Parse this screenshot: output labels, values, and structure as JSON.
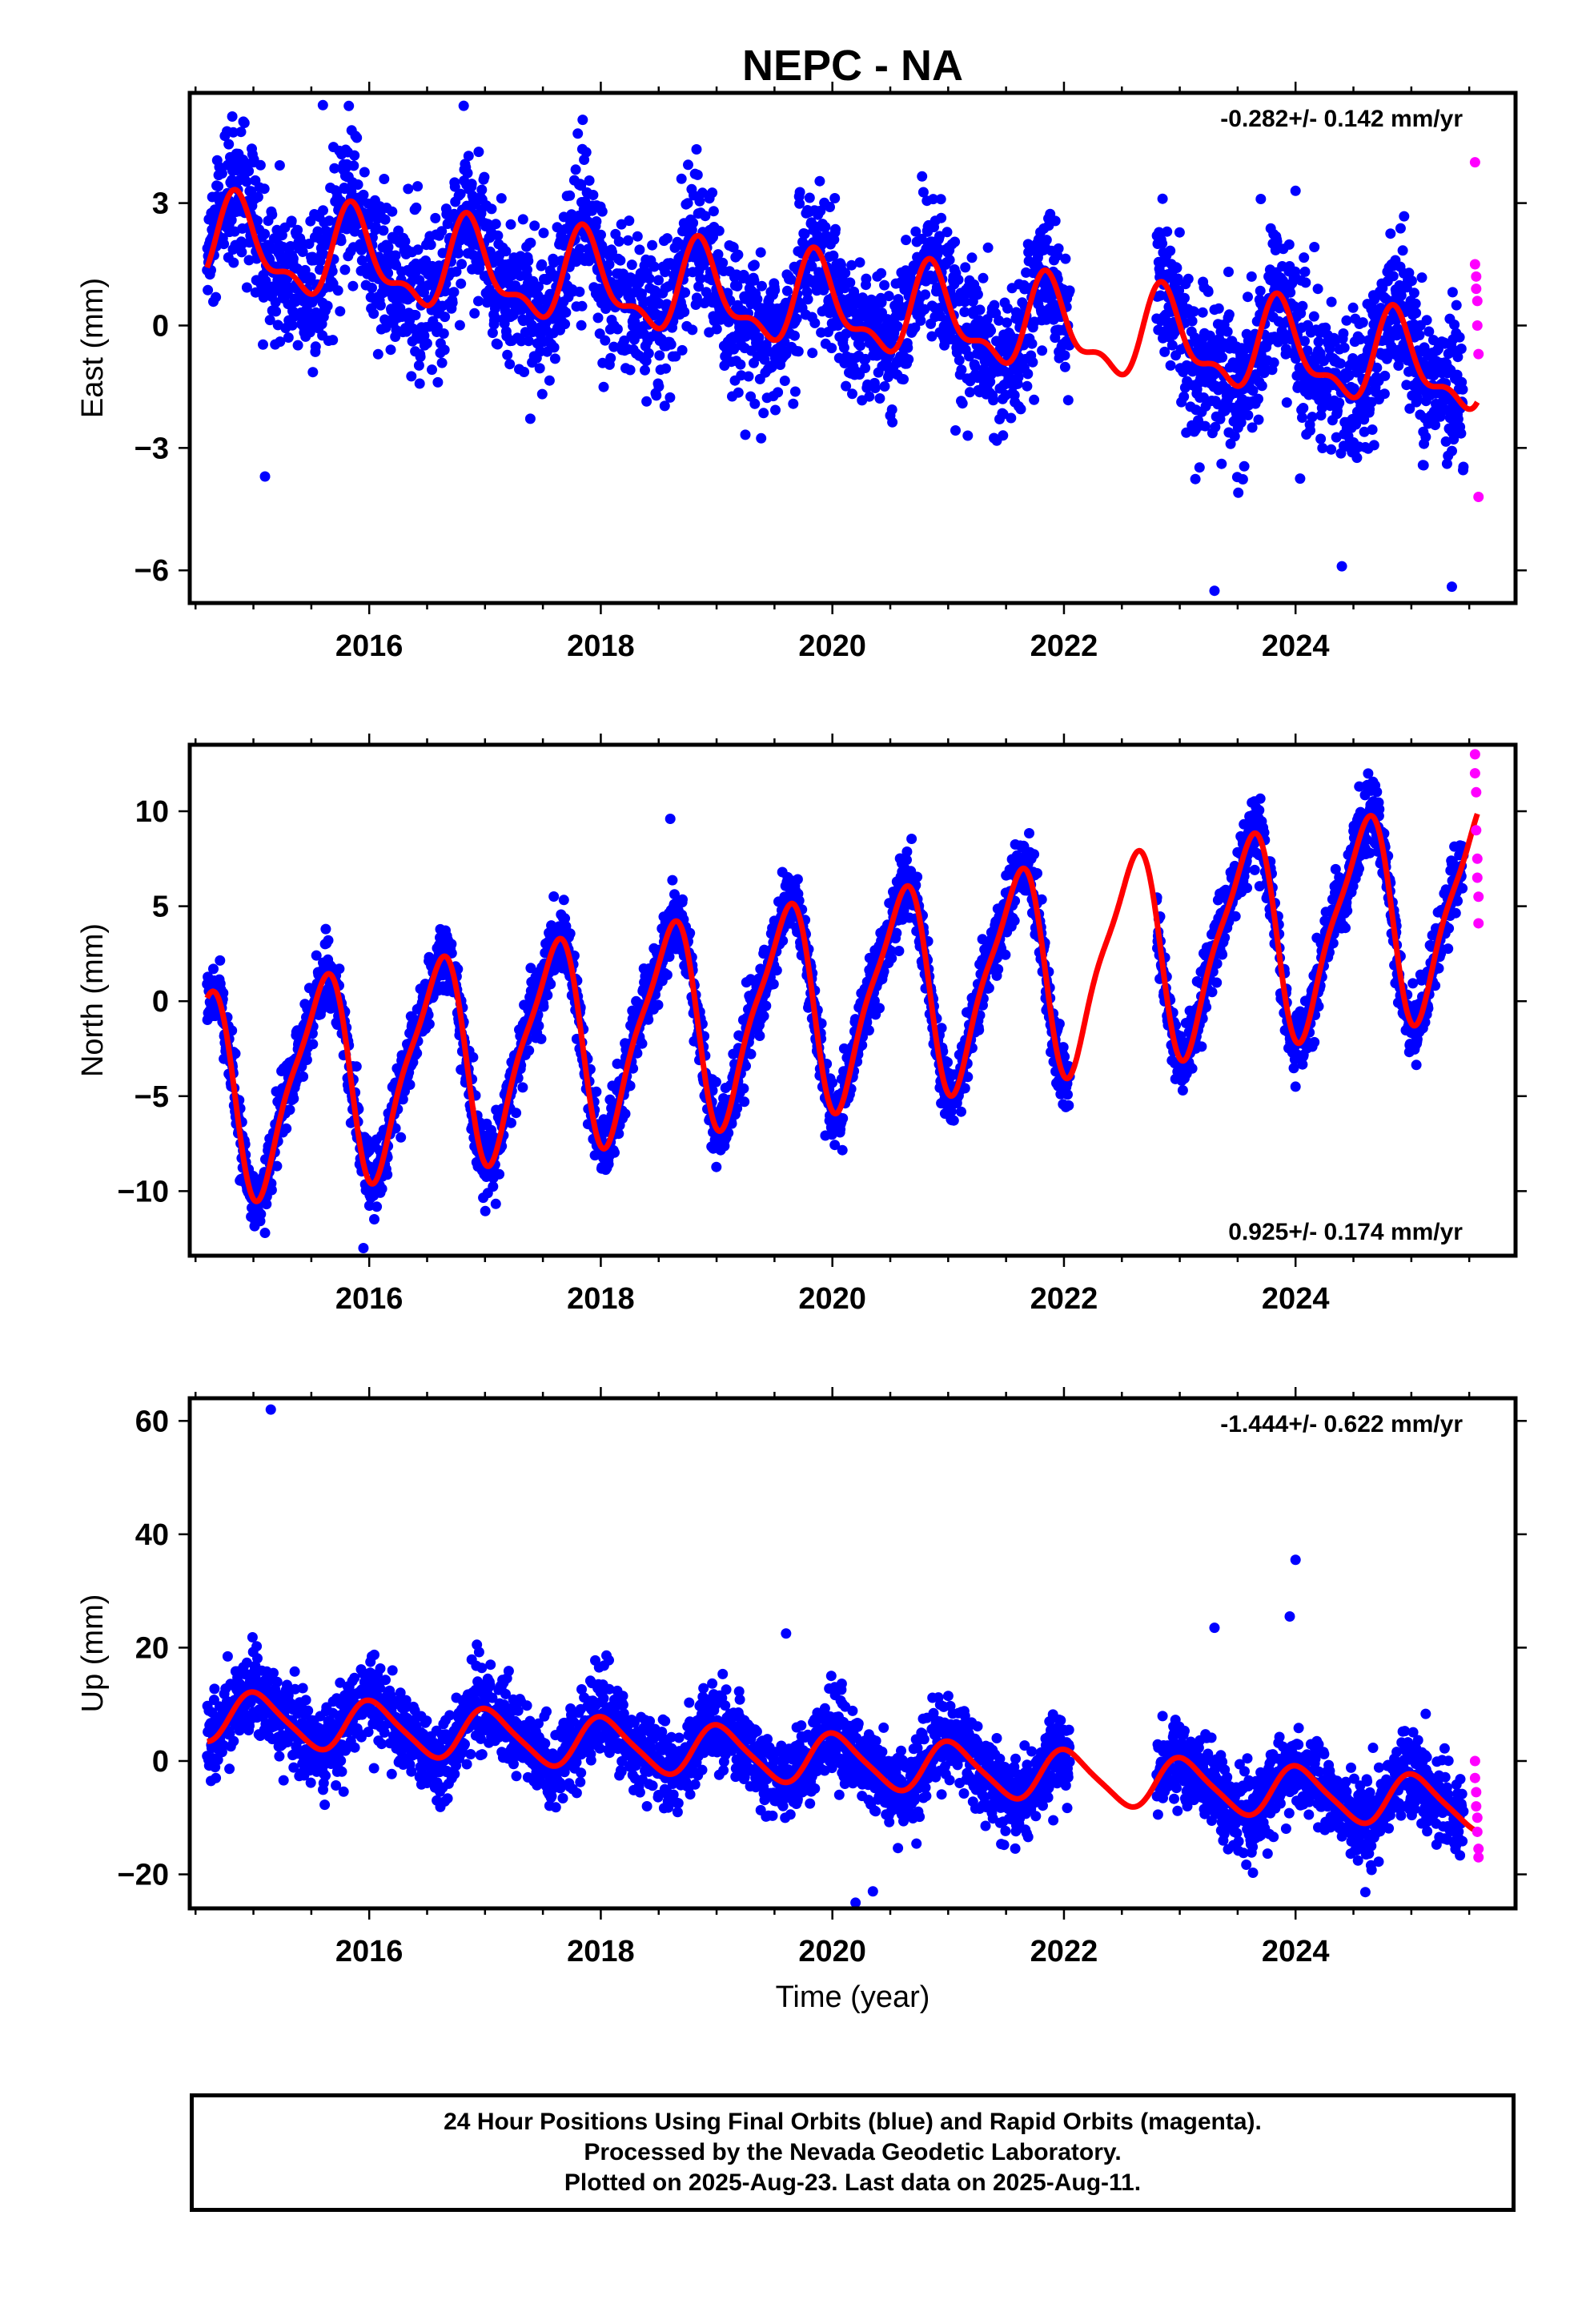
{
  "title": "NEPC - NA",
  "xlabel": "Time (year)",
  "footer": {
    "line1": "24 Hour Positions Using Final Orbits (blue) and Rapid Orbits (magenta).",
    "line2": "Processed by the Nevada Geodetic Laboratory.",
    "line3": "Plotted on 2025-Aug-23. Last data on 2025-Aug-11."
  },
  "colors": {
    "final": "#0000ff",
    "rapid": "#ff00ff",
    "model": "#ff0000"
  },
  "chart_data": [
    {
      "type": "scatter",
      "component": "east",
      "ylabel": "East (mm)",
      "rate_text": "-0.282+/- 0.142 mm/yr",
      "rate_position": "top-right",
      "x_range": [
        2014.45,
        2025.9
      ],
      "ylim": [
        -6.8,
        5.7
      ],
      "x_ticks": [
        2016,
        2018,
        2020,
        2022,
        2024
      ],
      "y_ticks": [
        -6,
        -3,
        0,
        3
      ],
      "y_tick_labels": [
        "−6",
        "−3",
        "0",
        "3"
      ],
      "data_span": [
        2014.6,
        2025.45
      ],
      "gap": [
        2022.05,
        2022.8
      ],
      "model": {
        "offset": 0.45,
        "rate_per_year": -0.282,
        "annual_amp": 1.0,
        "annual_phase": 0.62,
        "semiannual_amp": 0.45,
        "semiannual_phase": 0.2,
        "reference_year": 2020
      },
      "scatter_sd": 0.9,
      "approx_observations": 3600,
      "notable_points": [
        {
          "x": 2015.6,
          "y": 5.4
        },
        {
          "x": 2015.1,
          "y": -3.7
        },
        {
          "x": 2023.7,
          "y": 3.1
        },
        {
          "x": 2024.0,
          "y": 3.3
        },
        {
          "x": 2023.3,
          "y": -6.5
        },
        {
          "x": 2024.4,
          "y": -5.9
        },
        {
          "x": 2025.35,
          "y": -6.4
        }
      ],
      "rapid_points": [
        {
          "x": 2025.55,
          "y": 4.0
        },
        {
          "x": 2025.55,
          "y": 1.5
        },
        {
          "x": 2025.56,
          "y": 1.2
        },
        {
          "x": 2025.56,
          "y": 0.9
        },
        {
          "x": 2025.57,
          "y": 0.6
        },
        {
          "x": 2025.57,
          "y": 0.0
        },
        {
          "x": 2025.58,
          "y": -0.7
        },
        {
          "x": 2025.58,
          "y": -4.2
        }
      ]
    },
    {
      "type": "scatter",
      "component": "north",
      "ylabel": "North (mm)",
      "rate_text": "0.925+/- 0.174 mm/yr",
      "rate_position": "bottom-right",
      "x_range": [
        2014.45,
        2025.9
      ],
      "ylim": [
        -13.4,
        13.5
      ],
      "x_ticks": [
        2016,
        2018,
        2020,
        2022,
        2024
      ],
      "y_ticks": [
        -10,
        -5,
        0,
        5,
        10
      ],
      "y_tick_labels": [
        "−10",
        "−5",
        "0",
        "5",
        "10"
      ],
      "data_span": [
        2014.6,
        2025.45
      ],
      "gap": [
        2022.05,
        2022.8
      ],
      "model": {
        "offset": 0.0,
        "rate_per_year": 0.925,
        "annual_amp": 5.2,
        "annual_phase": 0.33,
        "semiannual_amp": 1.3,
        "semiannual_phase": 0.1,
        "reference_year": 2020
      },
      "scatter_sd": 0.9,
      "approx_observations": 3600,
      "notable_points": [
        {
          "x": 2015.1,
          "y": -12.2
        },
        {
          "x": 2015.95,
          "y": -13.0
        },
        {
          "x": 2018.6,
          "y": 9.6
        },
        {
          "x": 2024.0,
          "y": -4.5
        },
        {
          "x": 2024.55,
          "y": 11.3
        }
      ],
      "rapid_points": [
        {
          "x": 2025.55,
          "y": 13.0
        },
        {
          "x": 2025.55,
          "y": 12.0
        },
        {
          "x": 2025.56,
          "y": 11.0
        },
        {
          "x": 2025.56,
          "y": 9.0
        },
        {
          "x": 2025.57,
          "y": 7.5
        },
        {
          "x": 2025.57,
          "y": 6.5
        },
        {
          "x": 2025.58,
          "y": 5.5
        },
        {
          "x": 2025.58,
          "y": 4.1
        }
      ]
    },
    {
      "type": "scatter",
      "component": "up",
      "ylabel": "Up (mm)",
      "rate_text": "-1.444+/- 0.622 mm/yr",
      "rate_position": "top-right",
      "x_range": [
        2014.45,
        2025.9
      ],
      "ylim": [
        -26,
        64
      ],
      "x_ticks": [
        2016,
        2018,
        2020,
        2022,
        2024
      ],
      "y_ticks": [
        -20,
        0,
        20,
        40,
        60
      ],
      "y_tick_labels": [
        "−20",
        "0",
        "20",
        "40",
        "60"
      ],
      "data_span": [
        2014.6,
        2025.45
      ],
      "gap": [
        2022.05,
        2022.8
      ],
      "model": {
        "offset": 0.2,
        "rate_per_year": -1.444,
        "annual_amp": 4.4,
        "annual_phase": 0.79,
        "semiannual_amp": 0.8,
        "semiannual_phase": 0.3,
        "reference_year": 2020
      },
      "scatter_sd": 3.6,
      "approx_observations": 3600,
      "notable_points": [
        {
          "x": 2015.15,
          "y": 62.0
        },
        {
          "x": 2019.6,
          "y": 22.5
        },
        {
          "x": 2023.3,
          "y": 23.5
        },
        {
          "x": 2024.0,
          "y": 35.5
        },
        {
          "x": 2023.95,
          "y": 25.5
        },
        {
          "x": 2020.2,
          "y": -25.0
        },
        {
          "x": 2020.35,
          "y": -23.0
        }
      ],
      "rapid_points": [
        {
          "x": 2025.55,
          "y": 0.0
        },
        {
          "x": 2025.55,
          "y": -3.0
        },
        {
          "x": 2025.56,
          "y": -5.5
        },
        {
          "x": 2025.56,
          "y": -8.0
        },
        {
          "x": 2025.57,
          "y": -10.0
        },
        {
          "x": 2025.57,
          "y": -12.5
        },
        {
          "x": 2025.58,
          "y": -15.5
        },
        {
          "x": 2025.58,
          "y": -17.0
        }
      ]
    }
  ]
}
